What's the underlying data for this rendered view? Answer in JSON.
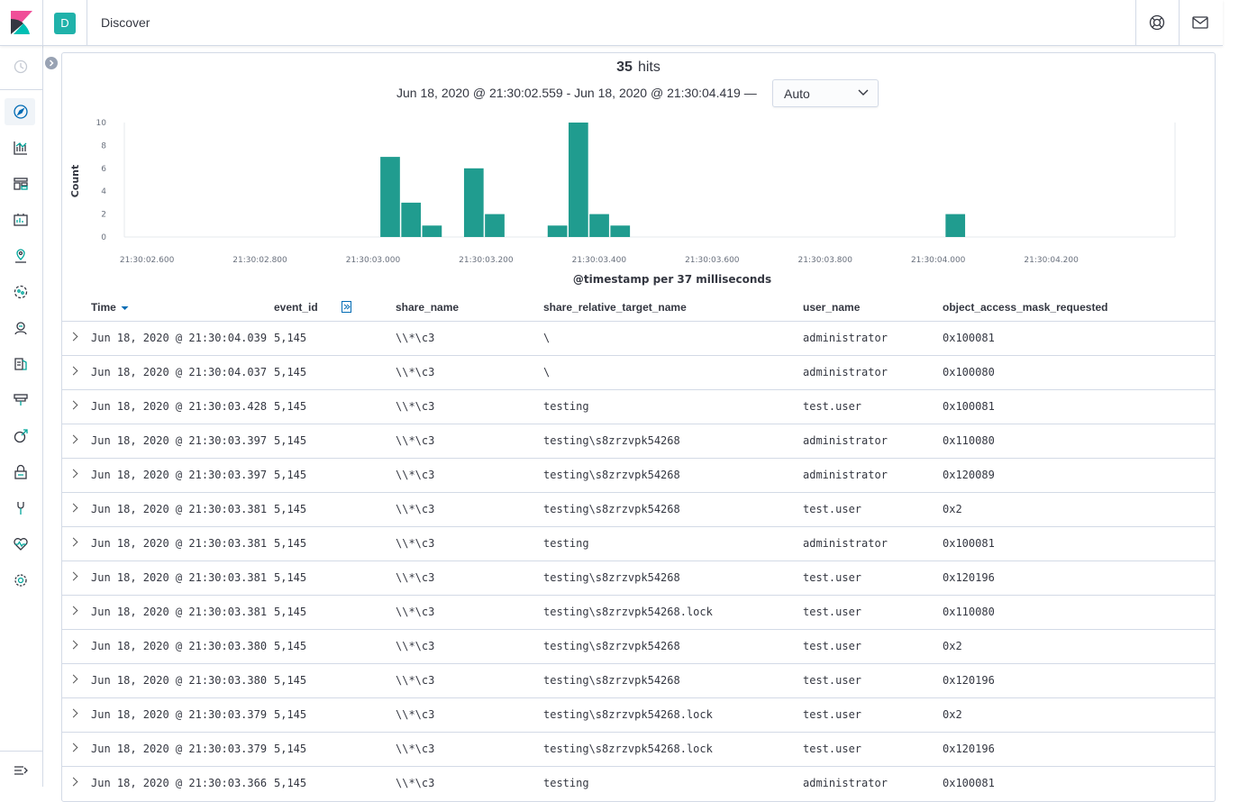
{
  "header": {
    "space_initial": "D",
    "page_title": "Discover"
  },
  "icons": {
    "logo": "kibana-logo-icon",
    "help": "help-lifebuoy-icon",
    "mail": "mail-icon",
    "nav": [
      "recently-viewed-clock-icon",
      "discover-compass-icon",
      "visualize-icon",
      "dashboard-icon",
      "canvas-icon",
      "maps-icon",
      "machine-learning-icon",
      "siem-icon",
      "logs-icon",
      "uptime-icon",
      "apm-icon",
      "security-lock-icon",
      "dev-tools-icon",
      "monitoring-heartbeat-icon",
      "management-gear-icon"
    ]
  },
  "summary": {
    "hits_count": "35",
    "hits_label": "hits",
    "time_range": "Jun 18, 2020 @ 21:30:02.559 - Jun 18, 2020 @ 21:30:04.419 —",
    "interval": "Auto"
  },
  "chart_data": {
    "type": "bar",
    "ylabel": "Count",
    "xlabel": "@timestamp per 37 milliseconds",
    "ylim": [
      0,
      10
    ],
    "yticks": [
      "0",
      "2",
      "4",
      "6",
      "8",
      "10"
    ],
    "xticks": [
      "21:30:02.600",
      "21:30:02.800",
      "21:30:03.000",
      "21:30:03.200",
      "21:30:03.400",
      "21:30:03.600",
      "21:30:03.800",
      "21:30:04.000",
      "21:30:04.200"
    ],
    "xtick_ms": [
      2600,
      2800,
      3000,
      3200,
      3400,
      3600,
      3800,
      4000,
      4200
    ],
    "bar_width_ms": 37,
    "bars": [
      {
        "start_ms": 3013,
        "value": 7
      },
      {
        "start_ms": 3050,
        "value": 3
      },
      {
        "start_ms": 3087,
        "value": 1
      },
      {
        "start_ms": 3161,
        "value": 6
      },
      {
        "start_ms": 3198,
        "value": 2
      },
      {
        "start_ms": 3309,
        "value": 1
      },
      {
        "start_ms": 3346,
        "value": 10
      },
      {
        "start_ms": 3383,
        "value": 2
      },
      {
        "start_ms": 3420,
        "value": 1
      },
      {
        "start_ms": 4013,
        "value": 2
      }
    ],
    "bar_color": "#209c8f",
    "grid": false
  },
  "table": {
    "columns": [
      "Time",
      "event_id",
      "share_name",
      "share_relative_target_name",
      "user_name",
      "object_access_mask_requested"
    ],
    "sort_icon": "sort-descending-icon",
    "move_icon": "move-column-right-icon",
    "rows": [
      {
        "time": "Jun 18, 2020 @ 21:30:04.039",
        "event_id": "5,145",
        "share_name": "\\\\*\\c3",
        "target": "\\",
        "user": "administrator",
        "mask": "0x100081"
      },
      {
        "time": "Jun 18, 2020 @ 21:30:04.037",
        "event_id": "5,145",
        "share_name": "\\\\*\\c3",
        "target": "\\",
        "user": "administrator",
        "mask": "0x100080"
      },
      {
        "time": "Jun 18, 2020 @ 21:30:03.428",
        "event_id": "5,145",
        "share_name": "\\\\*\\c3",
        "target": "testing",
        "user": "test.user",
        "mask": "0x100081"
      },
      {
        "time": "Jun 18, 2020 @ 21:30:03.397",
        "event_id": "5,145",
        "share_name": "\\\\*\\c3",
        "target": "testing\\s8zrzvpk54268",
        "user": "administrator",
        "mask": "0x110080"
      },
      {
        "time": "Jun 18, 2020 @ 21:30:03.397",
        "event_id": "5,145",
        "share_name": "\\\\*\\c3",
        "target": "testing\\s8zrzvpk54268",
        "user": "administrator",
        "mask": "0x120089"
      },
      {
        "time": "Jun 18, 2020 @ 21:30:03.381",
        "event_id": "5,145",
        "share_name": "\\\\*\\c3",
        "target": "testing\\s8zrzvpk54268",
        "user": "test.user",
        "mask": "0x2"
      },
      {
        "time": "Jun 18, 2020 @ 21:30:03.381",
        "event_id": "5,145",
        "share_name": "\\\\*\\c3",
        "target": "testing",
        "user": "administrator",
        "mask": "0x100081"
      },
      {
        "time": "Jun 18, 2020 @ 21:30:03.381",
        "event_id": "5,145",
        "share_name": "\\\\*\\c3",
        "target": "testing\\s8zrzvpk54268",
        "user": "test.user",
        "mask": "0x120196"
      },
      {
        "time": "Jun 18, 2020 @ 21:30:03.381",
        "event_id": "5,145",
        "share_name": "\\\\*\\c3",
        "target": "testing\\s8zrzvpk54268.lock",
        "user": "test.user",
        "mask": "0x110080"
      },
      {
        "time": "Jun 18, 2020 @ 21:30:03.380",
        "event_id": "5,145",
        "share_name": "\\\\*\\c3",
        "target": "testing\\s8zrzvpk54268",
        "user": "test.user",
        "mask": "0x2"
      },
      {
        "time": "Jun 18, 2020 @ 21:30:03.380",
        "event_id": "5,145",
        "share_name": "\\\\*\\c3",
        "target": "testing\\s8zrzvpk54268",
        "user": "test.user",
        "mask": "0x120196"
      },
      {
        "time": "Jun 18, 2020 @ 21:30:03.379",
        "event_id": "5,145",
        "share_name": "\\\\*\\c3",
        "target": "testing\\s8zrzvpk54268.lock",
        "user": "test.user",
        "mask": "0x2"
      },
      {
        "time": "Jun 18, 2020 @ 21:30:03.379",
        "event_id": "5,145",
        "share_name": "\\\\*\\c3",
        "target": "testing\\s8zrzvpk54268.lock",
        "user": "test.user",
        "mask": "0x120196"
      },
      {
        "time": "Jun 18, 2020 @ 21:30:03.366",
        "event_id": "5,145",
        "share_name": "\\\\*\\c3",
        "target": "testing",
        "user": "administrator",
        "mask": "0x100081"
      }
    ]
  }
}
